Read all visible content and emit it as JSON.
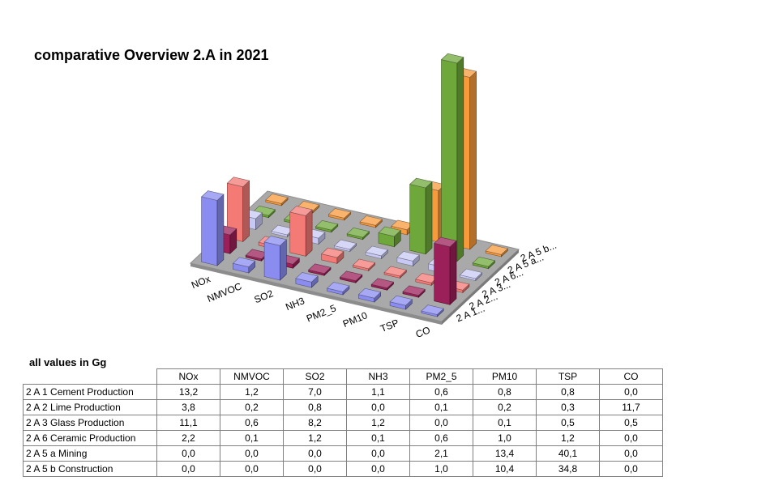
{
  "title": "comparative Overview 2.A in 2021",
  "units_note": "all values in Gg",
  "chart_data": {
    "type": "bar",
    "subtype": "3d-column",
    "title": "comparative Overview 2.A in 2021",
    "categories": [
      "NOx",
      "NMVOC",
      "SO2",
      "NH3",
      "PM2_5",
      "PM10",
      "TSP",
      "CO"
    ],
    "series_axis_labels": [
      "2 A 1...",
      "2 A 2...",
      "2 A 3...",
      "2 A 6...",
      "2 A 5 a...",
      "2 A 5 b..."
    ],
    "series": [
      {
        "name": "2 A 1 Cement Production",
        "values": [
          "13,2",
          "1,2",
          "7,0",
          "1,1",
          "0,6",
          "0,8",
          "0,8",
          "0,0"
        ],
        "color": "#8a8cf0"
      },
      {
        "name": "2 A 2 Lime Production",
        "values": [
          "3,8",
          "0,2",
          "0,8",
          "0,0",
          "0,1",
          "0,2",
          "0,3",
          "11,7"
        ],
        "color": "#9b1f58"
      },
      {
        "name": "2 A 3 Glass Production",
        "values": [
          "11,1",
          "0,6",
          "8,2",
          "1,2",
          "0,0",
          "0,1",
          "0,5",
          "0,5"
        ],
        "color": "#f47a76"
      },
      {
        "name": "2 A 6 Ceramic Production",
        "values": [
          "2,2",
          "0,1",
          "1,2",
          "0,1",
          "0,6",
          "1,0",
          "1,2",
          "0,0"
        ],
        "color": "#c8c8f4"
      },
      {
        "name": "2 A 5 a Mining",
        "values": [
          "0,0",
          "0,0",
          "0,0",
          "0,0",
          "2,1",
          "13,4",
          "40,1",
          "0,0"
        ],
        "color": "#6fa83a"
      },
      {
        "name": "2 A 5 b Construction",
        "values": [
          "0,0",
          "0,0",
          "0,0",
          "0,0",
          "1,0",
          "10,4",
          "34,8",
          "0,0"
        ],
        "color": "#f79a3c"
      }
    ],
    "legend": "none",
    "grid": false
  }
}
